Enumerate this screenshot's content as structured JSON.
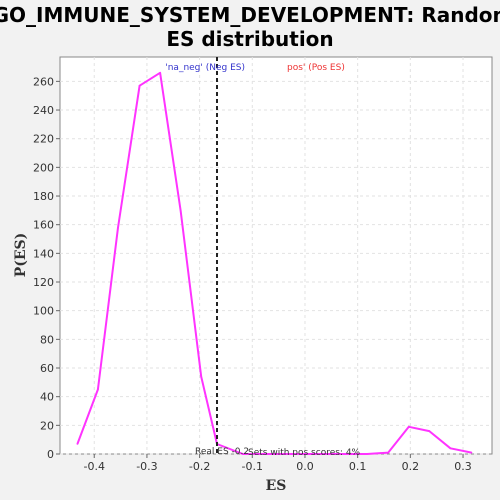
{
  "chart_data": {
    "type": "line",
    "title_lines": [
      "GO_IMMUNE_SYSTEM_DEVELOPMENT: Random",
      "ES distribution"
    ],
    "xlabel": "ES",
    "ylabel": "P(ES)",
    "xlim": [
      -0.465,
      0.355
    ],
    "ylim": [
      0,
      277
    ],
    "x_ticks": [
      -0.4,
      -0.3,
      -0.2,
      -0.1,
      0.0,
      0.1,
      0.2,
      0.3
    ],
    "x_tick_labels": [
      "-0.4",
      "-0.3",
      "-0.2",
      "-0.1",
      "0.0",
      "0.1",
      "0.2",
      "0.3"
    ],
    "y_ticks": [
      0,
      20,
      40,
      60,
      80,
      100,
      120,
      140,
      160,
      180,
      200,
      220,
      240,
      260
    ],
    "y_tick_labels": [
      "0",
      "20",
      "40",
      "60",
      "80",
      "100",
      "120",
      "140",
      "160",
      "180",
      "200",
      "220",
      "240",
      "260"
    ],
    "grid": true,
    "series": [
      {
        "color": "#ff33ff",
        "x": [
          -0.432,
          -0.393,
          -0.355,
          -0.314,
          -0.275,
          -0.236,
          -0.197,
          -0.167,
          -0.118,
          -0.079,
          -0.04,
          0.0,
          0.04,
          0.079,
          0.118,
          0.158,
          0.197,
          0.236,
          0.276,
          0.316
        ],
        "y": [
          7,
          45,
          158,
          257,
          266,
          170,
          54,
          7,
          0,
          0,
          0,
          0,
          0,
          0,
          0,
          1,
          19,
          16,
          4,
          1
        ]
      }
    ],
    "real_es": {
      "x": -0.167,
      "color": "#222222"
    },
    "annotations": {
      "neg_label": "'na_neg' (Neg ES)",
      "neg_color": "#3333cc",
      "pos_label": "pos' (Pos ES)",
      "pos_color": "#ee3333",
      "real_es_label": "Real ES -0.2",
      "pos_scores_label": "Sets with pos scores: 4%"
    }
  }
}
